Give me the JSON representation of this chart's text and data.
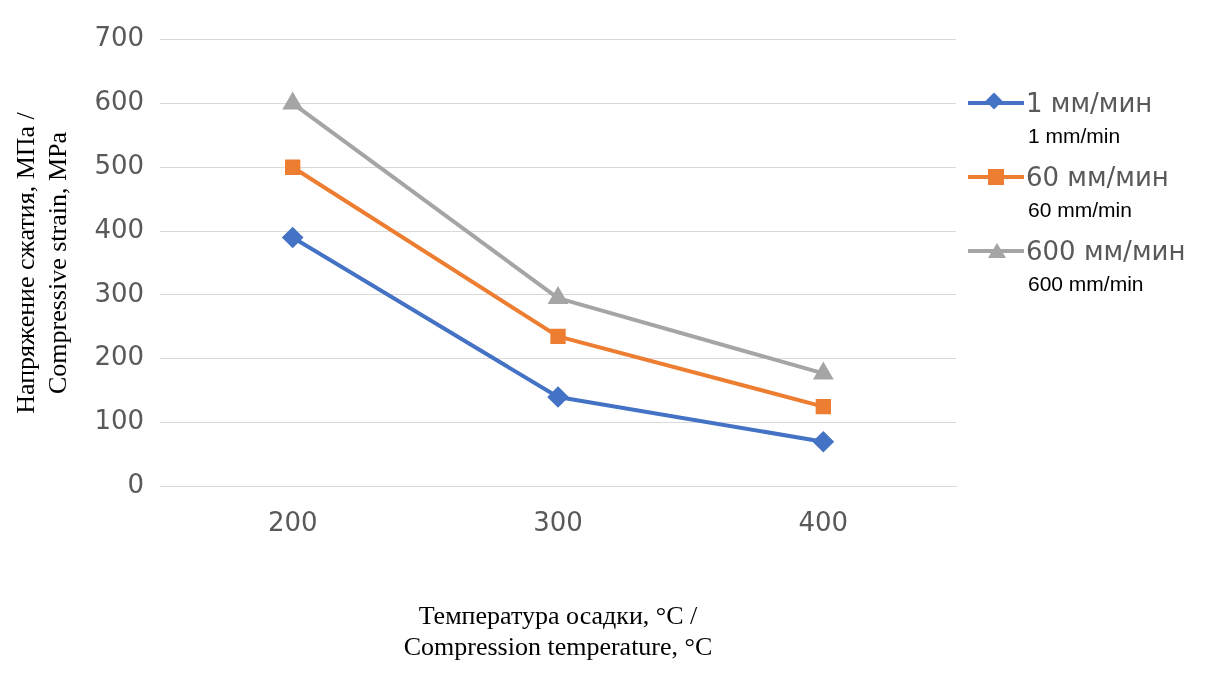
{
  "chart_data": {
    "type": "line",
    "xlabel": "Температура осадки, °C /\nCompression temperature, °C",
    "ylabel": "Напряжение сжатия, МПа /\nCompressive strain, MPa",
    "categories": [
      "200",
      "300",
      "400"
    ],
    "series": [
      {
        "name": "1 мм/мин\n1 mm/min",
        "color": "#4472c4",
        "marker": "diamond",
        "values": [
          390,
          140,
          70
        ]
      },
      {
        "name": "60 мм/мин\n60 mm/min",
        "color": "#ed7d31",
        "marker": "square",
        "values": [
          500,
          235,
          125
        ]
      },
      {
        "name": "600 мм/мин\n600 mm/min",
        "color": "#a5a5a5",
        "marker": "triangle",
        "values": [
          600,
          295,
          177
        ]
      }
    ],
    "ylim": [
      0,
      700
    ],
    "yticks": [
      0,
      100,
      200,
      300,
      400,
      500,
      600,
      700
    ],
    "grid": "y",
    "legend": "right"
  }
}
